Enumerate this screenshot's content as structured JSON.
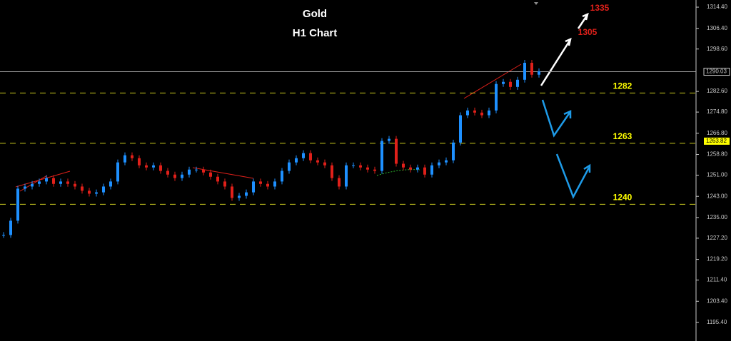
{
  "chart_data": {
    "type": "candlestick",
    "title": "Gold",
    "subtitle": "H1 Chart",
    "values": [
      1228.4,
      1233.8,
      1245.9,
      1246.7,
      1247.7,
      1248.6,
      1249.9,
      1247.7,
      1248.6,
      1247.7,
      1246.7,
      1245.1,
      1244.0,
      1244.5,
      1246.7,
      1248.6,
      1255.8,
      1258.5,
      1257.4,
      1254.7,
      1253.9,
      1254.7,
      1252.6,
      1251.2,
      1249.9,
      1251.2,
      1253.1,
      1253.1,
      1252.0,
      1250.4,
      1248.6,
      1246.7,
      1242.4,
      1243.2,
      1244.5,
      1248.6,
      1247.7,
      1246.7,
      1248.6,
      1252.6,
      1255.8,
      1257.4,
      1259.3,
      1256.6,
      1255.8,
      1254.7,
      1249.9,
      1246.7,
      1254.7,
      1254.7,
      1253.9,
      1253.1,
      1252.6,
      1263.9,
      1264.7,
      1255.3,
      1253.9,
      1253.1,
      1253.9,
      1251.2,
      1254.7,
      1255.8,
      1256.6,
      1263.3,
      1273.6,
      1275.4,
      1274.6,
      1273.6,
      1275.4,
      1285.4,
      1286.2,
      1284.3,
      1287.0,
      1293.4,
      1288.9,
      1290.2
    ],
    "up_color": "#1e90ff",
    "down_color": "#e0201a",
    "ylim": [
      1188.4,
      1317.1
    ],
    "yticks": [
      {
        "value": 1314.4,
        "label": "1314.40"
      },
      {
        "value": 1306.4,
        "label": "1306.40"
      },
      {
        "value": 1298.6,
        "label": "1298.60"
      },
      {
        "value": 1282.6,
        "label": "1282.60"
      },
      {
        "value": 1274.8,
        "label": "1274.80"
      },
      {
        "value": 1266.8,
        "label": "1266.80"
      },
      {
        "value": 1258.8,
        "label": "1258.80"
      },
      {
        "value": 1251.0,
        "label": "1251.00"
      },
      {
        "value": 1243.0,
        "label": "1243.00"
      },
      {
        "value": 1235.0,
        "label": "1235.00"
      },
      {
        "value": 1227.2,
        "label": "1227.20"
      },
      {
        "value": 1219.2,
        "label": "1219.20"
      },
      {
        "value": 1211.4,
        "label": "1211.40"
      },
      {
        "value": 1203.4,
        "label": "1203.40"
      },
      {
        "value": 1195.4,
        "label": "1195.40"
      }
    ],
    "last_price": 1290.03,
    "level_price": 1263.82,
    "levels": [
      1282,
      1263,
      1240
    ],
    "targets": [
      1305,
      1335
    ]
  }
}
